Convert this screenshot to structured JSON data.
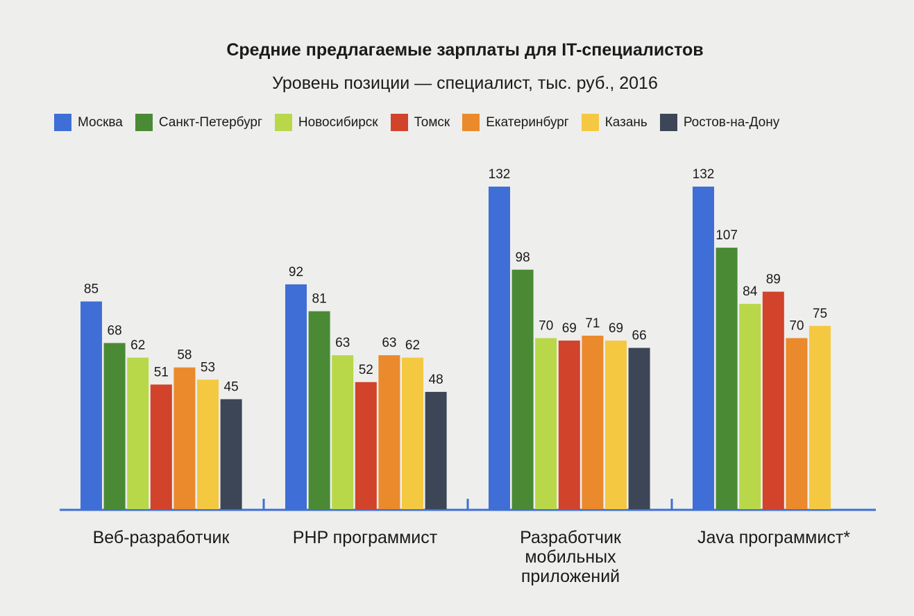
{
  "chart_data": {
    "type": "bar",
    "title": "Средние предлагаемые зарплаты для IT-специалистов",
    "subtitle": "Уровень позиции — специалист, тыс. руб., 2016",
    "categories": [
      [
        "Веб-разработчик"
      ],
      [
        "PHP программист"
      ],
      [
        "Разработчик",
        "мобильных",
        "приложений"
      ],
      [
        "Java программист*"
      ]
    ],
    "series": [
      {
        "name": "Москва",
        "color": "#3f6fd6",
        "values": [
          85,
          92,
          132,
          132
        ]
      },
      {
        "name": "Санкт-Петербург",
        "color": "#4a8a35",
        "values": [
          68,
          81,
          98,
          107
        ]
      },
      {
        "name": "Новосибирск",
        "color": "#b8d84a",
        "values": [
          62,
          63,
          70,
          84
        ]
      },
      {
        "name": "Томск",
        "color": "#d1432a",
        "values": [
          51,
          52,
          69,
          89
        ]
      },
      {
        "name": "Екатеринбург",
        "color": "#ea8a2c",
        "values": [
          58,
          63,
          71,
          70
        ]
      },
      {
        "name": "Казань",
        "color": "#f5c842",
        "values": [
          53,
          62,
          69,
          75
        ]
      },
      {
        "name": "Ростов-на-Дону",
        "color": "#3c4656",
        "values": [
          45,
          48,
          66,
          null
        ]
      }
    ],
    "ylim": [
      0,
      140
    ],
    "grid": false,
    "legend": "top"
  }
}
